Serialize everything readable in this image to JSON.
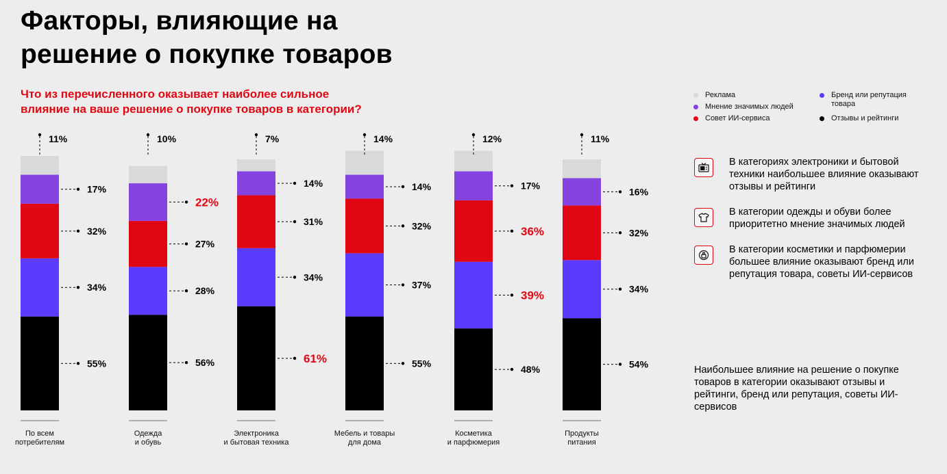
{
  "title_lines": [
    "Факторы, влияющие на",
    "решение о покупке товаров"
  ],
  "question_lines": [
    "Что из перечисленного оказывает наиболее сильное",
    "влияние на ваше решение о покупке товаров в категории?"
  ],
  "legend": [
    {
      "label": "Реклама",
      "color": "#d9d9d9"
    },
    {
      "label": "Мнение значимых людей",
      "color": "#8443df"
    },
    {
      "label": "Совет ИИ-сервиса",
      "color": "#e00712"
    },
    {
      "label": "Бренд или репутация товара",
      "color": "#5a3bff"
    },
    {
      "label": "Отзывы и рейтинги",
      "color": "#000000"
    }
  ],
  "chart_data": {
    "type": "bar",
    "stacked": true,
    "categories": [
      "По всем потребителям",
      "Одежда и обувь",
      "Электроника и бытовая техника",
      "Мебель и товары для дома",
      "Косметика и парфюмерия",
      "Продукты питания"
    ],
    "category_label_lines": [
      [
        "По всем",
        "потребителям"
      ],
      [
        "Одежда",
        "и обувь"
      ],
      [
        "Электроника",
        "и бытовая техника"
      ],
      [
        "Мебель и товары",
        "для дома"
      ],
      [
        "Косметика",
        "и парфюмерия"
      ],
      [
        "Продукты",
        "питания"
      ]
    ],
    "unit": "%",
    "series": [
      {
        "name": "Отзывы и рейтинги",
        "color": "#000000",
        "values": [
          55,
          56,
          61,
          55,
          48,
          54
        ],
        "highlight": [
          false,
          false,
          true,
          false,
          false,
          false
        ]
      },
      {
        "name": "Бренд или репутация товара",
        "color": "#5a3bff",
        "values": [
          34,
          28,
          34,
          37,
          39,
          34
        ],
        "highlight": [
          false,
          false,
          false,
          false,
          true,
          false
        ]
      },
      {
        "name": "Совет ИИ-сервиса",
        "color": "#e00712",
        "values": [
          32,
          27,
          31,
          32,
          36,
          32
        ],
        "highlight": [
          false,
          false,
          false,
          false,
          true,
          false
        ]
      },
      {
        "name": "Мнение значимых людей",
        "color": "#8443df",
        "values": [
          17,
          22,
          14,
          14,
          17,
          16
        ],
        "highlight": [
          false,
          true,
          false,
          false,
          false,
          false
        ]
      },
      {
        "name": "Реклама",
        "color": "#d9d9d9",
        "values": [
          11,
          10,
          7,
          14,
          12,
          11
        ],
        "highlight": [
          false,
          false,
          false,
          false,
          false,
          false
        ]
      }
    ],
    "highlight_color": "#e00712"
  },
  "insights": [
    {
      "icon": "tv-icon",
      "text": "В категориях электроники и бытовой техники наибольшее влияние оказывают отзывы и рейтинги"
    },
    {
      "icon": "tshirt-icon",
      "text": "В категории одежды и обуви более приоритетно мнение значимых людей"
    },
    {
      "icon": "perfume-icon",
      "text": "В категории косметики и парфюмерии большее влияние оказывают бренд или репутация товара, советы ИИ-сервисов"
    }
  ],
  "summary": "Наибольшее влияние на решение о покупке товаров в категории оказывают отзывы и рейтинги, бренд или репутация, советы ИИ-сервисов"
}
